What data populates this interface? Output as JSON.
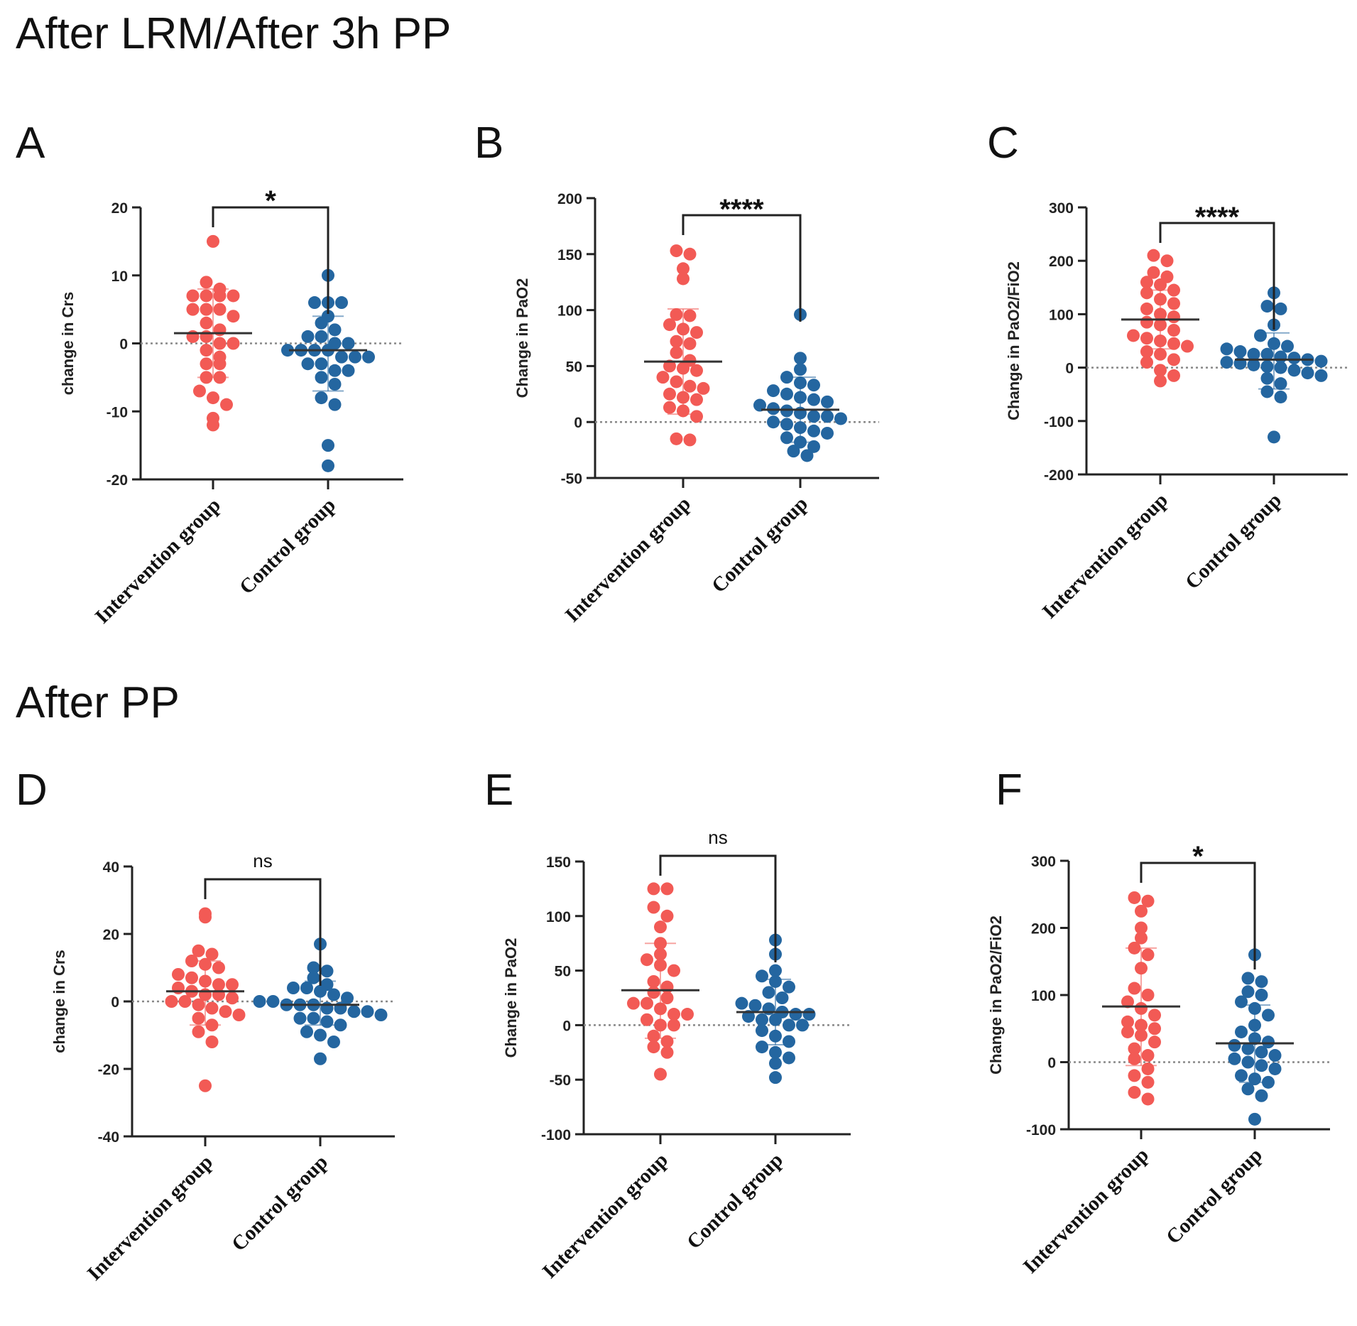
{
  "sections": [
    {
      "title": "After LRM/After 3h PP"
    },
    {
      "title": "After PP"
    }
  ],
  "colors": {
    "intervention": "#f25a55",
    "control": "#2466a0",
    "axis": "#222222",
    "baseline": "#888888"
  },
  "chart_data": [
    {
      "panel": "A",
      "type": "scatter",
      "ylabel": "change in Crs",
      "ylim": [
        -20,
        20
      ],
      "yticks": [
        20,
        10,
        0,
        -10,
        -20
      ],
      "categories": [
        "Intervention group",
        "Control group"
      ],
      "significance": "*",
      "series": [
        {
          "name": "Intervention group",
          "mean": 1.5,
          "sd_upper": 8,
          "sd_lower": -5,
          "values": [
            15,
            9,
            8,
            7,
            7,
            7,
            7,
            5,
            5,
            5,
            4,
            3,
            2,
            1,
            1,
            0,
            0,
            -1,
            -2,
            -3,
            -3,
            -5,
            -5,
            -7,
            -8,
            -9,
            -11,
            -12
          ]
        },
        {
          "name": "Control group",
          "mean": -1,
          "sd_upper": 4,
          "sd_lower": -7,
          "values": [
            10,
            6,
            6,
            6,
            4,
            3,
            2,
            1,
            1,
            0,
            0,
            -1,
            -1,
            -1,
            -1,
            -2,
            -2,
            -2,
            -3,
            -3,
            -4,
            -4,
            -5,
            -6,
            -8,
            -9,
            -15,
            -18
          ]
        }
      ]
    },
    {
      "panel": "B",
      "type": "scatter",
      "ylabel": "Change in PaO2",
      "ylim": [
        -50,
        200
      ],
      "yticks": [
        200,
        150,
        100,
        50,
        0,
        -50
      ],
      "categories": [
        "Intervention group",
        "Control group"
      ],
      "significance": "****",
      "series": [
        {
          "name": "Intervention group",
          "mean": 54,
          "sd_upper": 101,
          "sd_lower": 7,
          "values": [
            153,
            150,
            137,
            128,
            96,
            95,
            87,
            83,
            80,
            72,
            70,
            62,
            55,
            50,
            48,
            46,
            40,
            36,
            32,
            30,
            25,
            22,
            20,
            13,
            10,
            5,
            -15,
            -16
          ]
        },
        {
          "name": "Control group",
          "mean": 11,
          "sd_upper": 40,
          "sd_lower": -18,
          "values": [
            96,
            57,
            47,
            40,
            35,
            33,
            28,
            25,
            22,
            20,
            18,
            15,
            12,
            10,
            8,
            5,
            5,
            3,
            0,
            -2,
            -5,
            -8,
            -10,
            -14,
            -18,
            -22,
            -26,
            -30
          ]
        }
      ]
    },
    {
      "panel": "C",
      "type": "scatter",
      "ylabel": "Change in PaO2/FiO2",
      "ylim": [
        -200,
        300
      ],
      "yticks": [
        300,
        200,
        100,
        0,
        -100,
        -200
      ],
      "categories": [
        "Intervention group",
        "Control group"
      ],
      "significance": "****",
      "series": [
        {
          "name": "Intervention group",
          "mean": 90,
          "sd_upper": 145,
          "sd_lower": 35,
          "values": [
            210,
            200,
            178,
            170,
            160,
            155,
            145,
            140,
            128,
            120,
            110,
            100,
            95,
            85,
            80,
            70,
            60,
            55,
            50,
            45,
            40,
            30,
            25,
            15,
            10,
            -5,
            -15,
            -25
          ]
        },
        {
          "name": "Control group",
          "mean": 15,
          "sd_upper": 65,
          "sd_lower": -40,
          "values": [
            140,
            115,
            110,
            80,
            60,
            45,
            40,
            35,
            30,
            25,
            25,
            20,
            18,
            15,
            12,
            10,
            8,
            5,
            2,
            0,
            -5,
            -10,
            -15,
            -20,
            -30,
            -45,
            -55,
            -130
          ]
        }
      ]
    },
    {
      "panel": "D",
      "type": "scatter",
      "ylabel": "change in Crs",
      "ylim": [
        -40,
        40
      ],
      "yticks": [
        40,
        20,
        0,
        -20,
        -40
      ],
      "categories": [
        "Intervention group",
        "Control group"
      ],
      "significance": "ns",
      "series": [
        {
          "name": "Intervention group",
          "mean": 3,
          "sd_upper": 12,
          "sd_lower": -7,
          "values": [
            26,
            25,
            15,
            14,
            12,
            11,
            10,
            8,
            7,
            6,
            5,
            5,
            4,
            3,
            2,
            2,
            1,
            0,
            0,
            -1,
            -2,
            -3,
            -4,
            -5,
            -7,
            -9,
            -12,
            -25
          ]
        },
        {
          "name": "Control group",
          "mean": -1,
          "sd_upper": 6,
          "sd_lower": -7,
          "values": [
            17,
            10,
            9,
            7,
            5,
            4,
            4,
            3,
            2,
            1,
            0,
            0,
            -1,
            -1,
            -1,
            -2,
            -2,
            -3,
            -3,
            -4,
            -5,
            -5,
            -6,
            -7,
            -9,
            -10,
            -12,
            -17
          ]
        }
      ]
    },
    {
      "panel": "E",
      "type": "scatter",
      "ylabel": "Change in PaO2",
      "ylim": [
        -100,
        150
      ],
      "yticks": [
        150,
        100,
        50,
        0,
        -50,
        -100
      ],
      "categories": [
        "Intervention group",
        "Control group"
      ],
      "significance": "ns",
      "series": [
        {
          "name": "Intervention group",
          "mean": 32,
          "sd_upper": 75,
          "sd_lower": -12,
          "values": [
            125,
            125,
            108,
            100,
            90,
            75,
            65,
            60,
            55,
            50,
            40,
            35,
            30,
            25,
            20,
            20,
            15,
            10,
            10,
            5,
            0,
            0,
            -10,
            -15,
            -20,
            -25,
            -45
          ]
        },
        {
          "name": "Control group",
          "mean": 12,
          "sd_upper": 42,
          "sd_lower": -18,
          "values": [
            78,
            65,
            50,
            45,
            40,
            35,
            30,
            25,
            20,
            18,
            15,
            12,
            10,
            10,
            8,
            5,
            5,
            0,
            0,
            -5,
            -10,
            -15,
            -20,
            -25,
            -30,
            -35,
            -48
          ]
        }
      ]
    },
    {
      "panel": "F",
      "type": "scatter",
      "ylabel": "Change in PaO2/FiO2",
      "ylim": [
        -100,
        300
      ],
      "yticks": [
        300,
        200,
        100,
        0,
        -100
      ],
      "categories": [
        "Intervention group",
        "Control group"
      ],
      "significance": "*",
      "series": [
        {
          "name": "Intervention group",
          "mean": 83,
          "sd_upper": 170,
          "sd_lower": -5,
          "values": [
            245,
            240,
            225,
            200,
            185,
            170,
            160,
            140,
            110,
            100,
            90,
            80,
            70,
            60,
            55,
            50,
            45,
            40,
            30,
            20,
            10,
            5,
            -10,
            -20,
            -30,
            -45,
            -55
          ]
        },
        {
          "name": "Control group",
          "mean": 28,
          "sd_upper": 85,
          "sd_lower": -30,
          "values": [
            160,
            125,
            120,
            105,
            100,
            90,
            80,
            70,
            55,
            45,
            35,
            30,
            25,
            20,
            15,
            10,
            5,
            0,
            -5,
            -10,
            -20,
            -25,
            -30,
            -40,
            -50,
            -85
          ]
        }
      ]
    }
  ]
}
